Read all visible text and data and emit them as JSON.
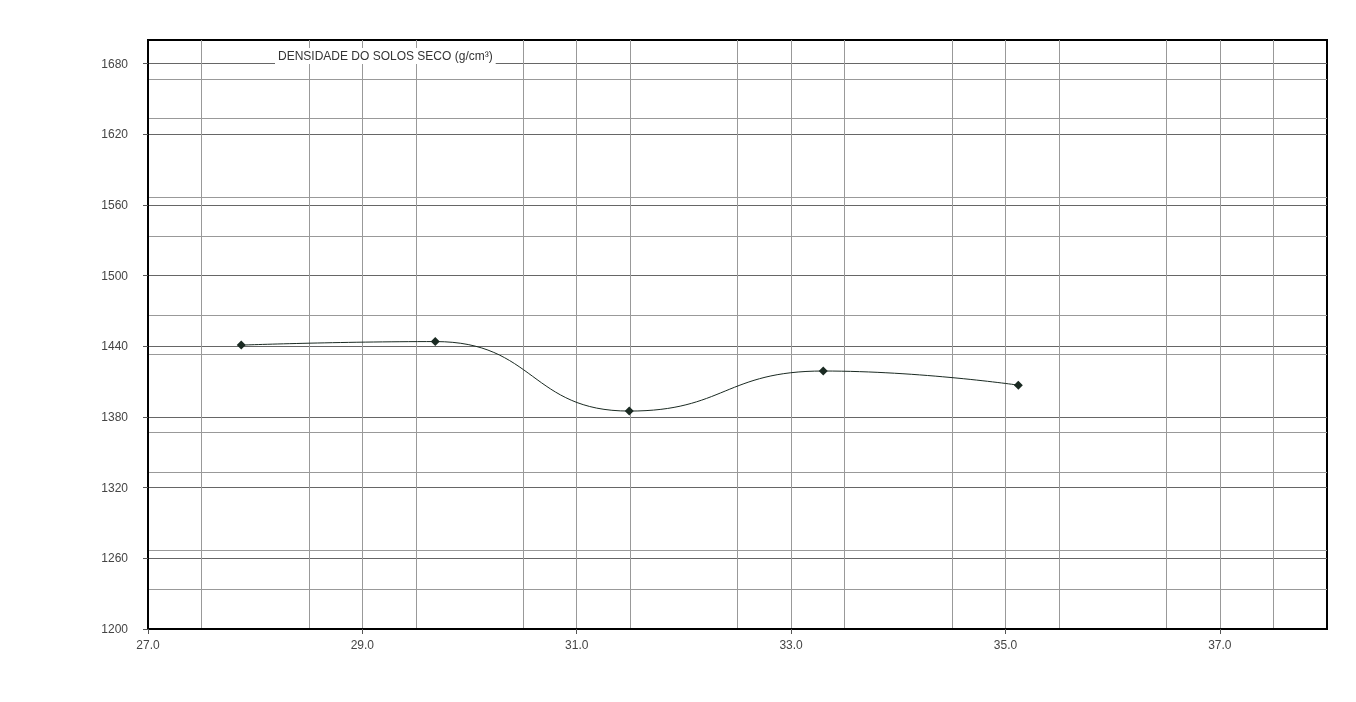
{
  "chart_data": {
    "type": "line",
    "title": "DENSIDADE DO SOLOS SECO (g/cm³)",
    "x": [
      27.87,
      29.68,
      31.49,
      33.3,
      35.12
    ],
    "series": [
      {
        "color": "#1a2a22",
        "values": [
          1441,
          1444,
          1385,
          1419,
          1407
        ]
      }
    ],
    "xlim": [
      27,
      38
    ],
    "xticks": [
      {
        "value": 27,
        "label": "27.0"
      },
      {
        "value": 29,
        "label": "29.0"
      },
      {
        "value": 31,
        "label": "31.0"
      },
      {
        "value": 33,
        "label": "33.0"
      },
      {
        "value": 35,
        "label": "35.0"
      },
      {
        "value": 37,
        "label": "37.0"
      }
    ],
    "ylim": [
      1200,
      1700
    ],
    "yticks": [
      1200,
      1260,
      1320,
      1380,
      1440,
      1500,
      1560,
      1620,
      1680
    ],
    "grid": true,
    "marker": "diamond",
    "line_style": "solid"
  }
}
